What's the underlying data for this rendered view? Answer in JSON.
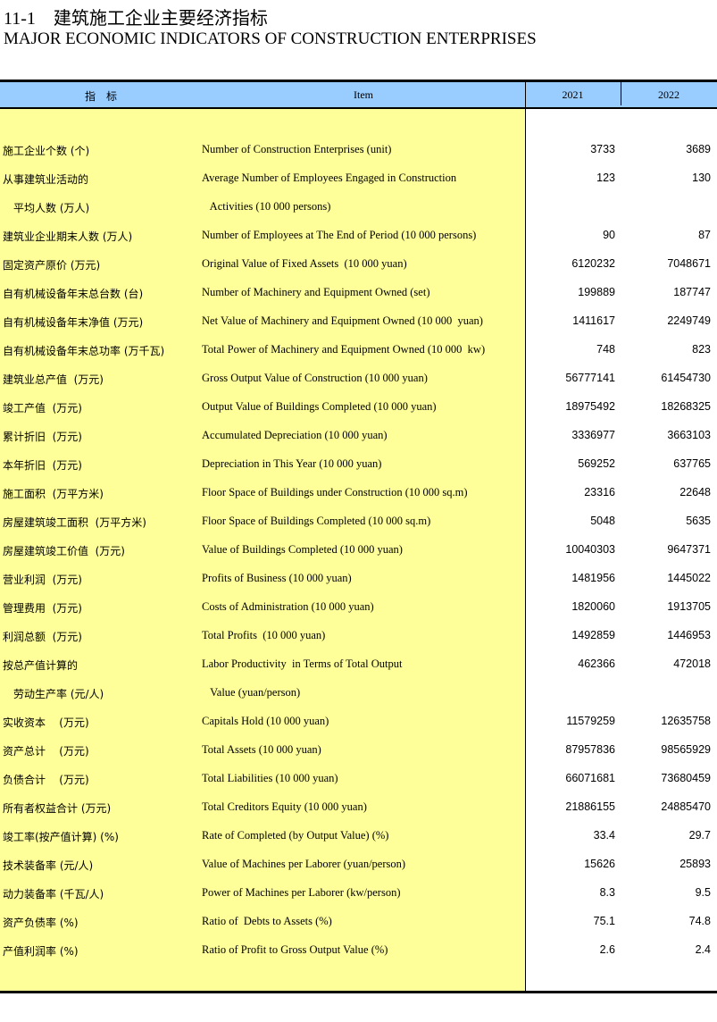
{
  "title_zh": "11-1　建筑施工企业主要经济指标",
  "title_en": "MAJOR ECONOMIC INDICATORS OF CONSTRUCTION ENTERPRISES",
  "header": {
    "zh": "指　标",
    "item": "Item",
    "y1": "2021",
    "y2": "2022"
  },
  "colors": {
    "header_bg": "#99ccff",
    "label_bg": "#ffff99"
  },
  "rows": [
    {
      "zh": "施工企业个数 (个)",
      "en": "Number of Construction Enterprises (unit)",
      "v1": "3733",
      "v2": "3689"
    },
    {
      "zh": "从事建筑业活动的",
      "en": "Average Number of Employees Engaged in Construction",
      "v1": "123",
      "v2": "130"
    },
    {
      "zh": "　平均人数 (万人)",
      "en": "   Activities (10 000 persons)",
      "v1": "",
      "v2": ""
    },
    {
      "zh": "建筑业企业期末人数 (万人)",
      "en": "Number of Employees at The End of Period (10 000 persons)",
      "v1": "90",
      "v2": "87"
    },
    {
      "zh": "固定资产原价 (万元)",
      "en": "Original Value of Fixed Assets  (10 000 yuan)",
      "v1": "6120232",
      "v2": "7048671"
    },
    {
      "zh": "自有机械设备年末总台数 (台)",
      "en": "Number of Machinery and Equipment Owned (set)",
      "v1": "199889",
      "v2": "187747"
    },
    {
      "zh": "自有机械设备年末净值 (万元)",
      "en": "Net Value of Machinery and Equipment Owned (10 000  yuan)",
      "v1": "1411617",
      "v2": "2249749"
    },
    {
      "zh": "自有机械设备年末总功率 (万千瓦)",
      "en": "Total Power of Machinery and Equipment Owned (10 000  kw)",
      "v1": "748",
      "v2": "823"
    },
    {
      "zh": "建筑业总产值  (万元)",
      "en": "Gross Output Value of Construction (10 000 yuan)",
      "v1": "56777141",
      "v2": "61454730"
    },
    {
      "zh": "竣工产值  (万元)",
      "en": "Output Value of Buildings Completed (10 000 yuan)",
      "v1": "18975492",
      "v2": "18268325"
    },
    {
      "zh": "累计折旧  (万元)",
      "en": "Accumulated Depreciation (10 000 yuan)",
      "v1": "3336977",
      "v2": "3663103"
    },
    {
      "zh": "本年折旧  (万元)",
      "en": "Depreciation in This Year (10 000 yuan)",
      "v1": "569252",
      "v2": "637765"
    },
    {
      "zh": "施工面积  (万平方米)",
      "en": "Floor Space of Buildings under Construction (10 000 sq.m)",
      "v1": "23316",
      "v2": "22648"
    },
    {
      "zh": "房屋建筑竣工面积  (万平方米)",
      "en": "Floor Space of Buildings Completed (10 000 sq.m)",
      "v1": "5048",
      "v2": "5635"
    },
    {
      "zh": "房屋建筑竣工价值  (万元)",
      "en": "Value of Buildings Completed (10 000 yuan)",
      "v1": "10040303",
      "v2": "9647371"
    },
    {
      "zh": "营业利润  (万元)",
      "en": "Profits of Business (10 000 yuan)",
      "v1": "1481956",
      "v2": "1445022"
    },
    {
      "zh": "管理费用  (万元)",
      "en": "Costs of Administration (10 000 yuan)",
      "v1": "1820060",
      "v2": "1913705"
    },
    {
      "zh": "利润总额  (万元)",
      "en": "Total Profits  (10 000 yuan)",
      "v1": "1492859",
      "v2": "1446953"
    },
    {
      "zh": "按总产值计算的",
      "en": "Labor Productivity  in Terms of Total Output",
      "v1": "462366",
      "v2": "472018"
    },
    {
      "zh": "　劳动生产率 (元/人)",
      "en": "   Value (yuan/person)",
      "v1": "",
      "v2": ""
    },
    {
      "zh": "实收资本    (万元)",
      "en": "Capitals Hold (10 000 yuan)",
      "v1": "11579259",
      "v2": "12635758"
    },
    {
      "zh": "资产总计    (万元)",
      "en": "Total Assets (10 000 yuan)",
      "v1": "87957836",
      "v2": "98565929"
    },
    {
      "zh": "负债合计    (万元)",
      "en": "Total Liabilities (10 000 yuan)",
      "v1": "66071681",
      "v2": "73680459"
    },
    {
      "zh": "所有者权益合计 (万元)",
      "en": "Total Creditors Equity (10 000 yuan)",
      "v1": "21886155",
      "v2": "24885470"
    },
    {
      "zh": "竣工率(按产值计算) (%)",
      "en": "Rate of Completed (by Output Value) (%)",
      "v1": "33.4",
      "v2": "29.7"
    },
    {
      "zh": "技术装备率 (元/人)",
      "en": "Value of Machines per Laborer (yuan/person)",
      "v1": "15626",
      "v2": "25893"
    },
    {
      "zh": "动力装备率 (千瓦/人)",
      "en": "Power of Machines per Laborer (kw/person)",
      "v1": "8.3",
      "v2": "9.5"
    },
    {
      "zh": "资产负债率 (%)",
      "en": "Ratio of  Debts to Assets (%)",
      "v1": "75.1",
      "v2": "74.8"
    },
    {
      "zh": "产值利润率 (%)",
      "en": "Ratio of Profit to Gross Output Value (%)",
      "v1": "2.6",
      "v2": "2.4"
    }
  ]
}
